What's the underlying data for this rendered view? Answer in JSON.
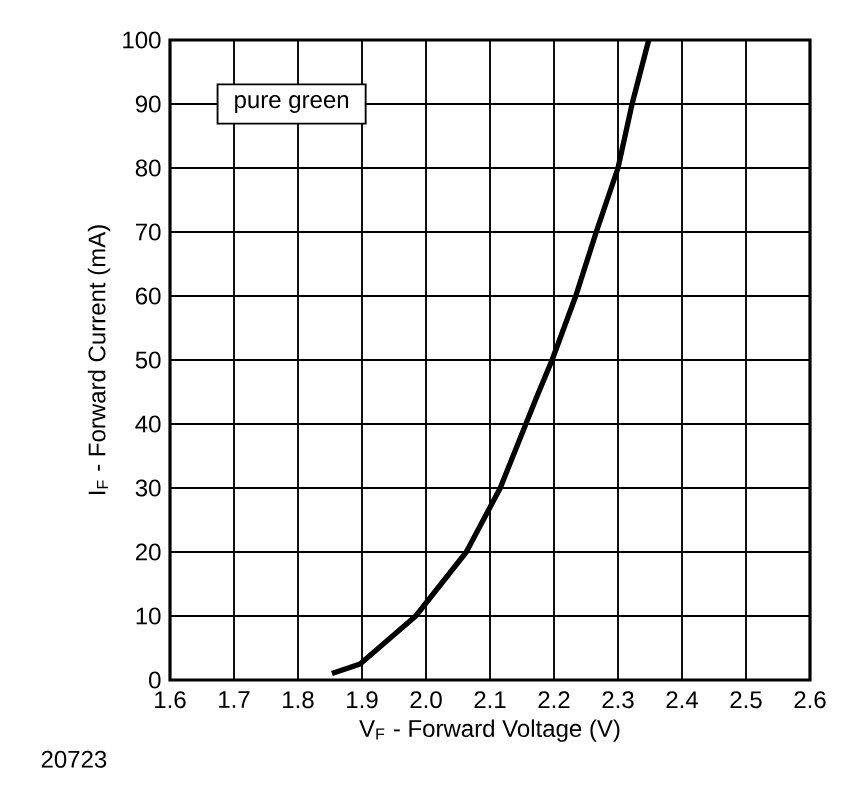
{
  "chart_data": {
    "type": "line",
    "xlabel": "V$_{F}$ - Forward Voltage (V)",
    "ylabel": "I$_{F}$ - Forward Current (mA)",
    "annotations": [
      "pure green",
      "20723"
    ],
    "xlim": [
      1.6,
      2.6
    ],
    "ylim": [
      0,
      100
    ],
    "xticks": [
      1.6,
      1.7,
      1.8,
      1.9,
      {
        "value": 2.0,
        "label": "2.0"
      },
      2.1,
      2.2,
      2.3,
      2.4,
      2.5,
      2.6
    ],
    "yticks": [
      0,
      10,
      20,
      30,
      40,
      50,
      60,
      70,
      80,
      90,
      100
    ],
    "grid": true,
    "marker": "none",
    "line_style": "solid",
    "series": [
      {
        "color": "#000000",
        "x": [
          1.853,
          1.897,
          1.984,
          2.063,
          2.116,
          2.172,
          2.197,
          2.234,
          2.266,
          2.3,
          2.322,
          2.348
        ],
        "values": [
          1,
          2.5,
          10,
          20,
          30,
          44,
          50,
          60,
          70,
          80,
          90,
          100
        ]
      }
    ]
  }
}
